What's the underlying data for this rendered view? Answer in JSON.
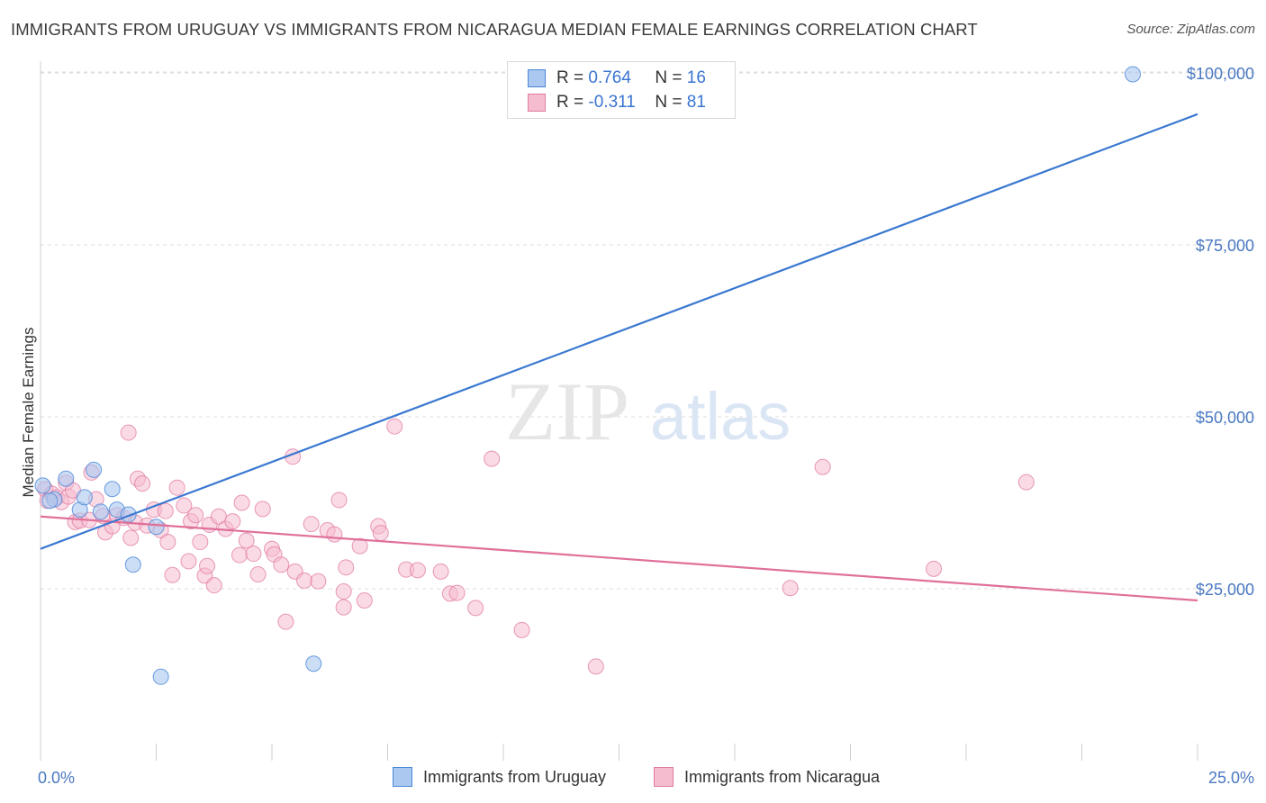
{
  "title": "IMMIGRANTS FROM URUGUAY VS IMMIGRANTS FROM NICARAGUA MEDIAN FEMALE EARNINGS CORRELATION CHART",
  "source": "Source: ZipAtlas.com",
  "watermark": {
    "zip": "ZIP",
    "atlas": "atlas"
  },
  "colors": {
    "uruguay": "#4a86d8",
    "uruguay_fill": "#aac8f0",
    "nicaragua": "#e07aa0",
    "nicaragua_fill": "#f5bcd0",
    "axis_label": "#4a78c2",
    "grid": "#dcdcdc"
  },
  "legend": {
    "rows": [
      {
        "r_label": "R =",
        "r_value": "0.764",
        "n_label": "N =",
        "n_value": "16"
      },
      {
        "r_label": "R =",
        "r_value": "-0.311",
        "n_label": "N =",
        "n_value": "81"
      }
    ]
  },
  "chart_data": {
    "type": "scatter",
    "xlabel": "",
    "ylabel": "Median Female Earnings",
    "xlim": [
      0,
      25
    ],
    "ylim": [
      0,
      105000
    ],
    "x_tick_labels": [
      "0.0%",
      "25.0%"
    ],
    "y_ticks": [
      25000,
      50000,
      75000,
      100000
    ],
    "y_tick_labels": [
      "$25,000",
      "$50,000",
      "$75,000",
      "$100,000"
    ],
    "grid": true,
    "legend_position": "top-center",
    "series": [
      {
        "name": "Immigrants from Uruguay",
        "trend": {
          "x": [
            0,
            25
          ],
          "y": [
            30800,
            94000
          ]
        },
        "points": [
          [
            0.05,
            40000
          ],
          [
            0.3,
            38000
          ],
          [
            0.55,
            41000
          ],
          [
            0.85,
            36500
          ],
          [
            0.95,
            38300
          ],
          [
            1.15,
            42300
          ],
          [
            1.3,
            36200
          ],
          [
            1.55,
            39500
          ],
          [
            1.65,
            36500
          ],
          [
            1.9,
            35800
          ],
          [
            2.5,
            34000
          ],
          [
            2.0,
            28500
          ],
          [
            2.6,
            12200
          ],
          [
            5.9,
            14100
          ],
          [
            23.6,
            99800
          ],
          [
            0.2,
            37800
          ]
        ]
      },
      {
        "name": "Immigrants from Nicaragua",
        "trend": {
          "x": [
            0,
            25
          ],
          "y": [
            35500,
            23300
          ]
        },
        "points": [
          [
            0.1,
            39500
          ],
          [
            0.15,
            37800
          ],
          [
            0.25,
            38800
          ],
          [
            0.35,
            38300
          ],
          [
            0.45,
            37600
          ],
          [
            0.55,
            40400
          ],
          [
            0.6,
            38400
          ],
          [
            0.7,
            39300
          ],
          [
            0.75,
            34700
          ],
          [
            0.85,
            34900
          ],
          [
            1.05,
            35000
          ],
          [
            1.1,
            41900
          ],
          [
            1.2,
            38000
          ],
          [
            1.35,
            35600
          ],
          [
            1.4,
            33200
          ],
          [
            1.55,
            34100
          ],
          [
            1.65,
            35700
          ],
          [
            1.8,
            35300
          ],
          [
            1.9,
            47700
          ],
          [
            1.95,
            32400
          ],
          [
            2.05,
            34600
          ],
          [
            2.1,
            41000
          ],
          [
            2.2,
            40300
          ],
          [
            2.3,
            34200
          ],
          [
            2.45,
            36500
          ],
          [
            2.6,
            33500
          ],
          [
            2.7,
            36300
          ],
          [
            2.75,
            31800
          ],
          [
            2.85,
            27000
          ],
          [
            2.95,
            39700
          ],
          [
            3.1,
            37100
          ],
          [
            3.2,
            29000
          ],
          [
            3.25,
            34800
          ],
          [
            3.35,
            35700
          ],
          [
            3.45,
            31800
          ],
          [
            3.55,
            26900
          ],
          [
            3.6,
            28300
          ],
          [
            3.65,
            34300
          ],
          [
            3.75,
            25500
          ],
          [
            3.85,
            35500
          ],
          [
            4.0,
            33700
          ],
          [
            4.15,
            34800
          ],
          [
            4.3,
            29900
          ],
          [
            4.35,
            37500
          ],
          [
            4.45,
            32000
          ],
          [
            4.6,
            30100
          ],
          [
            4.7,
            27100
          ],
          [
            4.8,
            36600
          ],
          [
            5.0,
            30800
          ],
          [
            5.05,
            30000
          ],
          [
            5.2,
            28500
          ],
          [
            5.3,
            20200
          ],
          [
            5.45,
            44200
          ],
          [
            5.5,
            27500
          ],
          [
            5.7,
            26200
          ],
          [
            5.85,
            34400
          ],
          [
            6.0,
            26100
          ],
          [
            6.2,
            33500
          ],
          [
            6.35,
            32900
          ],
          [
            6.45,
            37900
          ],
          [
            6.55,
            24600
          ],
          [
            6.55,
            22300
          ],
          [
            6.6,
            28100
          ],
          [
            6.9,
            31200
          ],
          [
            7.0,
            23300
          ],
          [
            7.3,
            34100
          ],
          [
            7.35,
            33100
          ],
          [
            7.65,
            48600
          ],
          [
            7.9,
            27800
          ],
          [
            8.15,
            27700
          ],
          [
            8.65,
            27500
          ],
          [
            8.85,
            24300
          ],
          [
            9.0,
            24400
          ],
          [
            9.4,
            22200
          ],
          [
            9.75,
            43900
          ],
          [
            10.4,
            19000
          ],
          [
            12.0,
            13700
          ],
          [
            16.2,
            25100
          ],
          [
            16.9,
            42700
          ],
          [
            19.3,
            27900
          ],
          [
            21.3,
            40500
          ]
        ]
      }
    ]
  }
}
